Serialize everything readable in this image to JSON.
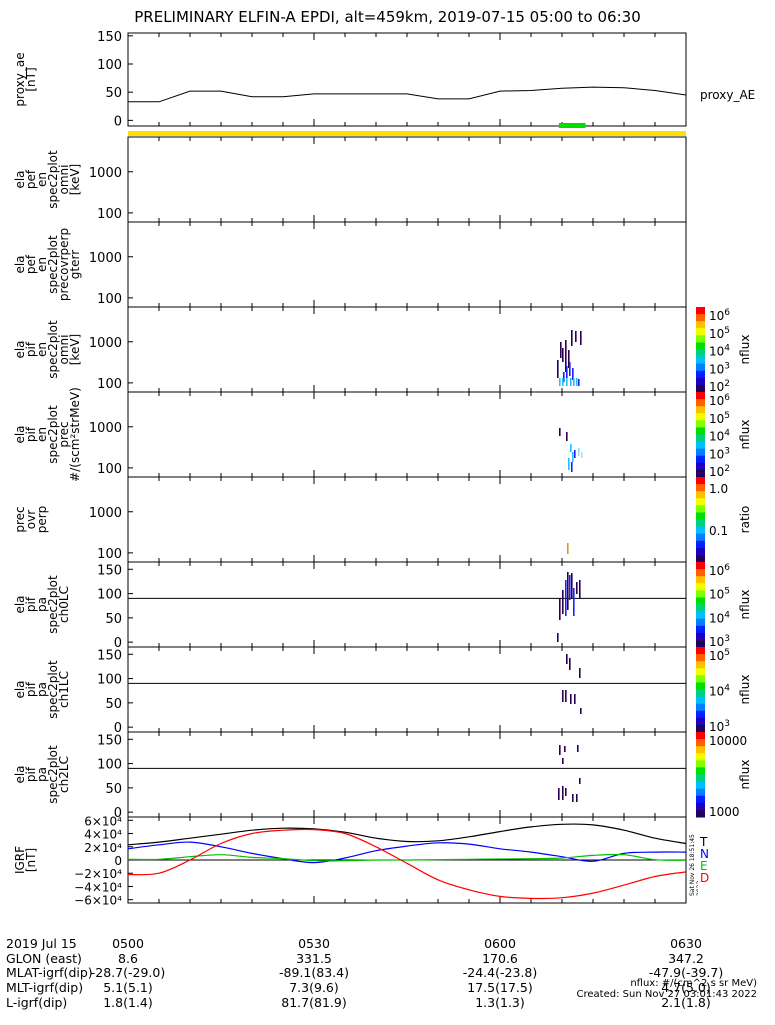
{
  "title": "PRELIMINARY ELFIN-A EPDI, alt=459km, 2019-07-15 05:00 to 06:30",
  "chart_data": [
    {
      "type": "line",
      "panel": "ae",
      "ylabel": [
        "proxy_ae",
        "[nT]"
      ],
      "ylim": [
        -10,
        155
      ],
      "yticks": [
        "150",
        "100",
        "50",
        "0"
      ],
      "legend": "proxy_AE",
      "x_minutes": [
        0,
        5,
        10,
        15,
        20,
        25,
        30,
        35,
        40,
        45,
        50,
        55,
        60,
        65,
        70,
        75,
        80,
        85,
        90
      ],
      "values": [
        33,
        33,
        52,
        52,
        42,
        42,
        47,
        47,
        47,
        47,
        38,
        38,
        52,
        53,
        57,
        59,
        58,
        53,
        45
      ]
    },
    {
      "type": "spectrogram",
      "panel": "pef-omni",
      "ylabel": [
        "ela",
        "pef",
        "en",
        "spec2plot",
        "omni",
        "[keV]"
      ],
      "yticks": [
        "1000",
        "100"
      ],
      "values": []
    },
    {
      "type": "spectrogram",
      "panel": "pef-precovrperp",
      "ylabel": [
        "ela",
        "pef",
        "en",
        "spec2plot",
        "precovrperp",
        "gterr"
      ],
      "yticks": [
        "1000",
        "100"
      ],
      "values": []
    },
    {
      "type": "spectrogram",
      "panel": "pif-omni",
      "ylabel": [
        "ela",
        "pif",
        "en",
        "spec2plot",
        "omni",
        "[keV]"
      ],
      "yticks": [
        "1000",
        "100"
      ],
      "colorbar": {
        "ticks": [
          "10",
          "10",
          "10",
          "10",
          "10"
        ],
        "exps": [
          "6",
          "5",
          "4",
          "3",
          "2"
        ],
        "label": "nflux"
      }
    },
    {
      "type": "spectrogram",
      "panel": "pif-prec",
      "ylabel": [
        "ela",
        "pif",
        "en",
        "spec2plot",
        "prec",
        "#/(scm²strMeV)"
      ],
      "yticks": [
        "1000",
        "100"
      ],
      "colorbar": {
        "ticks": [
          "10",
          "10",
          "10",
          "10",
          "10"
        ],
        "exps": [
          "6",
          "5",
          "4",
          "3",
          "2"
        ],
        "label": "nflux"
      }
    },
    {
      "type": "spectrogram",
      "panel": "prec-ovr-perp",
      "ylabel": [
        "prec",
        "ovr",
        "perp"
      ],
      "yticks": [
        "1000",
        "100"
      ],
      "colorbar": {
        "ticks": [
          "1.0",
          "0.1"
        ],
        "label": "ratio"
      }
    },
    {
      "type": "spectrogram",
      "panel": "ch0LC",
      "ylabel": [
        "ela",
        "pif",
        "pa",
        "spec2plot",
        "ch0LC"
      ],
      "yticks": [
        "150",
        "100",
        "50",
        "0"
      ],
      "colorbar": {
        "ticks": [
          "10",
          "10",
          "10",
          "10"
        ],
        "exps": [
          "6",
          "5",
          "4",
          "3"
        ],
        "label": "nflux"
      }
    },
    {
      "type": "spectrogram",
      "panel": "ch1LC",
      "ylabel": [
        "ela",
        "pif",
        "pa",
        "spec2plot",
        "ch1LC"
      ],
      "yticks": [
        "150",
        "100",
        "50",
        "0"
      ],
      "colorbar": {
        "ticks": [
          "10",
          "10",
          "10"
        ],
        "exps": [
          "5",
          "4",
          "3"
        ],
        "label": "nflux"
      }
    },
    {
      "type": "spectrogram",
      "panel": "ch2LC",
      "ylabel": [
        "ela",
        "pif",
        "pa",
        "spec2plot",
        "ch2LC"
      ],
      "yticks": [
        "150",
        "100",
        "50",
        "0"
      ],
      "colorbar": {
        "ticks": [
          "10000",
          "1000"
        ],
        "label": "nflux"
      }
    },
    {
      "type": "line",
      "panel": "igrf",
      "ylabel": [
        "IGRF",
        "[nT]"
      ],
      "ylim": [
        -65000,
        65000
      ],
      "yticks": [
        "6×10⁴",
        "4×10⁴",
        "2×10⁴",
        "0",
        "−2×10⁴",
        "−4×10⁴",
        "−6×10⁴"
      ],
      "x_minutes": [
        0,
        5,
        10,
        15,
        20,
        25,
        30,
        35,
        40,
        45,
        50,
        55,
        60,
        65,
        70,
        75,
        80,
        85,
        90
      ],
      "series": [
        {
          "name": "T",
          "color": "#000000",
          "values": [
            23000,
            27000,
            33000,
            39000,
            45000,
            48000,
            47000,
            42000,
            33000,
            28000,
            29000,
            35000,
            43000,
            50000,
            54000,
            53000,
            45000,
            33000,
            25000
          ]
        },
        {
          "name": "N",
          "color": "#0000ff",
          "values": [
            17000,
            23000,
            27000,
            20000,
            10000,
            2000,
            -4000,
            3000,
            14000,
            21000,
            26000,
            24000,
            17000,
            12000,
            5000,
            -2000,
            10000,
            12000,
            12000
          ]
        },
        {
          "name": "E",
          "color": "#00c000",
          "values": [
            1000,
            1000,
            5000,
            8000,
            4000,
            2000,
            -1000,
            -1000,
            0,
            0,
            500,
            1000,
            1500,
            2000,
            3000,
            7000,
            8000,
            500,
            -500
          ]
        },
        {
          "name": "D",
          "color": "#ff0000",
          "values": [
            -22000,
            -20000,
            0,
            25000,
            40000,
            45000,
            46000,
            40000,
            20000,
            -5000,
            -30000,
            -45000,
            -55000,
            -58000,
            -57000,
            -50000,
            -38000,
            -25000,
            -18000
          ]
        }
      ]
    }
  ],
  "annotation": {
    "rows": [
      {
        "label": "2019 Jul 15",
        "values": [
          "0500",
          "0530",
          "0600",
          "0630"
        ]
      },
      {
        "label": "GLON (east)",
        "values": [
          "8.6",
          "331.5",
          "170.6",
          "347.2"
        ]
      },
      {
        "label": "MLAT-igrf(dip)",
        "values": [
          "-28.7(-29.0)",
          "-89.1(83.4)",
          "-24.4(-23.8)",
          "-47.9(-39.7)"
        ]
      },
      {
        "label": "MLT-igrf(dip)",
        "values": [
          "5.1(5.1)",
          "7.3(9.6)",
          "17.5(17.5)",
          "4.7(5.0)"
        ]
      },
      {
        "label": "L-igrf(dip)",
        "values": [
          "1.8(1.4)",
          "81.7(81.9)",
          "1.3(1.3)",
          "2.1(1.8)"
        ]
      }
    ]
  },
  "footer": {
    "units": "nflux: #/(cm^2 s sr MeV)",
    "created": "Created: Sun Nov 27 03:01:43 2022"
  },
  "side_stamp": "Sat Nov 26 18:51:45 2022",
  "colors": {
    "sci_bar": "#ffe000",
    "sci_zone": "#00e000"
  }
}
